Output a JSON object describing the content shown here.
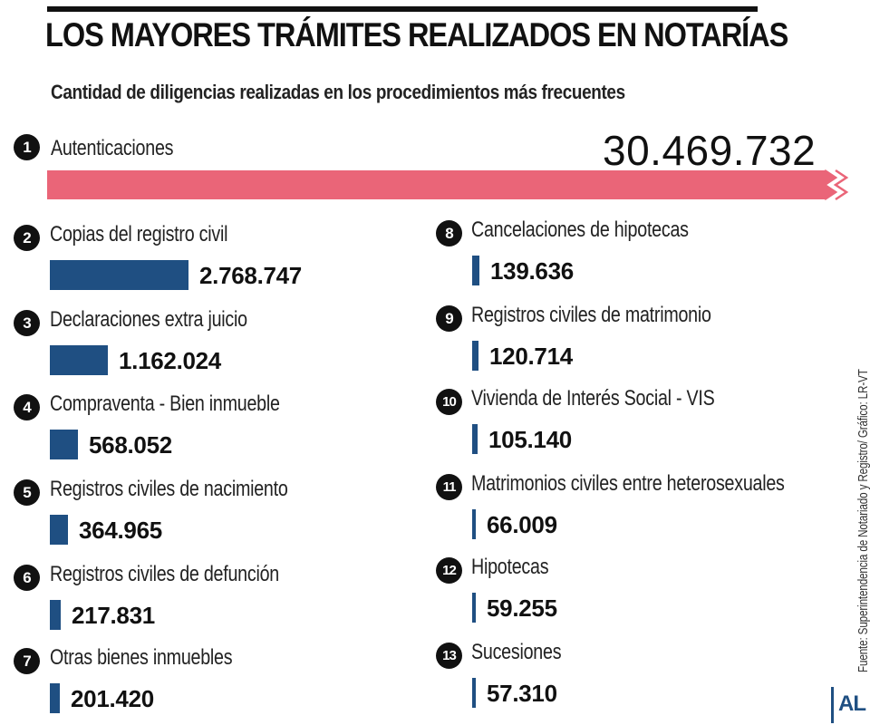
{
  "header": {
    "title": "LOS MAYORES TRÁMITES REALIZADOS EN NOTARÍAS",
    "subtitle": "Cantidad de diligencias realizadas en los procedimientos más frecuentes"
  },
  "source": "Fuente: Superintendencia de Notariado y Registro/ Gráfico: LR-VT",
  "logo": "AL",
  "colors": {
    "highlight": "#ea6578",
    "bar": "#1f4f82",
    "text": "#111111"
  },
  "chart_data": {
    "type": "bar",
    "title": "LOS MAYORES TRÁMITES REALIZADOS EN NOTARÍAS",
    "subtitle": "Cantidad de diligencias realizadas en los procedimientos más frecuentes",
    "xlabel": "",
    "ylabel": "",
    "orientation": "horizontal",
    "axis_break": "zigzag on the first bar",
    "categories": [
      "Autenticaciones",
      "Copias del registro civil",
      "Declaraciones extra juicio",
      "Compraventa - Bien inmueble",
      "Registros civiles de nacimiento",
      "Registros civiles de defunción",
      "Otras bienes inmuebles",
      "Cancelaciones de hipotecas",
      "Registros civiles de matrimonio",
      "Vivienda de Interés Social - VIS",
      "Matrimonios civiles entre heterosexuales",
      "Hipotecas",
      "Sucesiones"
    ],
    "ranks": [
      "1",
      "2",
      "3",
      "4",
      "5",
      "6",
      "7",
      "8",
      "9",
      "10",
      "11",
      "12",
      "13"
    ],
    "values": [
      30469732,
      2768747,
      1162024,
      568052,
      364965,
      217831,
      201420,
      139636,
      120714,
      105140,
      66009,
      59255,
      57310
    ],
    "value_labels": [
      "30.469.732",
      "2.768.747",
      "1.162.024",
      "568.052",
      "364.965",
      "217.831",
      "201.420",
      "139.636",
      "120.714",
      "105.140",
      "66.009",
      "59.255",
      "57.310"
    ]
  }
}
